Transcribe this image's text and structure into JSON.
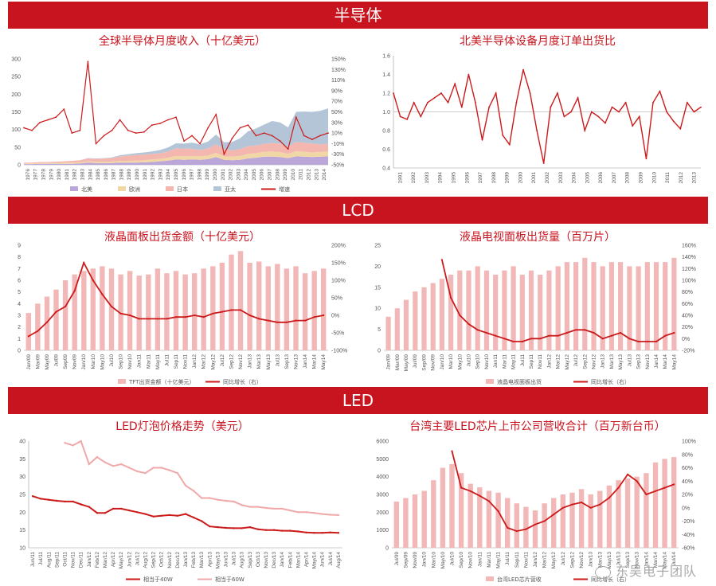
{
  "banners": {
    "semiconductor": "半导体",
    "lcd": "LCD",
    "led": "LED"
  },
  "watermark": "东吴电子团队",
  "colors": {
    "accent": "#c8141e",
    "bar": "#f2b8b8",
    "line": "#cc1a1a",
    "na": "#bba6d9",
    "eu": "#f2d7a6",
    "jp": "#f4b7b0",
    "ap": "#b4c5d8"
  },
  "chart_data": [
    {
      "id": "global-semi",
      "type": "area",
      "title": "全球半导体月度收入（十亿美元）",
      "ylim": [
        0,
        300
      ],
      "y_ticks": [
        "0",
        "50",
        "100",
        "150",
        "200",
        "250",
        "300"
      ],
      "y2lim": [
        -50,
        150
      ],
      "y2_ticks": [
        "-50%",
        "-30%",
        "-10%",
        "10%",
        "30%",
        "50%",
        "70%",
        "90%",
        "110%",
        "130%",
        "150%"
      ],
      "x_labels": [
        "1976",
        "1977",
        "1978",
        "1979",
        "1980",
        "1981",
        "1982",
        "1983",
        "1984",
        "1985",
        "1986",
        "1987",
        "1988",
        "1989",
        "1990",
        "1991",
        "1992",
        "1993",
        "1994",
        "1995",
        "1996",
        "1997",
        "1998",
        "1999",
        "2000",
        "2001",
        "2002",
        "2003",
        "2004",
        "2005",
        "2006",
        "2007",
        "2008",
        "2009",
        "2010",
        "2011",
        "2012",
        "2013",
        "2014"
      ],
      "legend": [
        "北美",
        "欧洲",
        "日本",
        "亚太",
        "增速"
      ],
      "series": [
        {
          "name": "北美",
          "values": [
            2,
            2,
            3,
            3,
            3,
            3,
            3,
            4,
            6,
            5,
            5,
            5,
            6,
            6,
            6,
            7,
            8,
            10,
            12,
            15,
            14,
            15,
            14,
            16,
            22,
            14,
            13,
            14,
            18,
            20,
            23,
            23,
            22,
            19,
            24,
            23,
            22,
            23,
            24
          ]
        },
        {
          "name": "欧洲",
          "values": [
            2,
            2,
            2,
            2,
            2,
            3,
            3,
            3,
            4,
            4,
            4,
            4,
            5,
            5,
            6,
            6,
            7,
            7,
            8,
            10,
            10,
            10,
            10,
            10,
            12,
            10,
            10,
            11,
            13,
            13,
            14,
            15,
            14,
            12,
            15,
            14,
            13,
            13,
            14
          ]
        },
        {
          "name": "日本",
          "values": [
            2,
            2,
            3,
            3,
            4,
            4,
            5,
            6,
            8,
            8,
            9,
            10,
            13,
            15,
            16,
            16,
            16,
            16,
            18,
            22,
            22,
            21,
            18,
            20,
            24,
            20,
            18,
            20,
            22,
            22,
            22,
            24,
            24,
            20,
            26,
            26,
            25,
            22,
            22
          ]
        },
        {
          "name": "亚太",
          "values": [
            0,
            0,
            0,
            0,
            0,
            0,
            0,
            0,
            1,
            1,
            1,
            2,
            3,
            4,
            5,
            6,
            7,
            9,
            11,
            14,
            14,
            17,
            16,
            20,
            28,
            20,
            24,
            30,
            42,
            48,
            55,
            62,
            60,
            55,
            85,
            88,
            90,
            95,
            100
          ]
        },
        {
          "name": "增速",
          "values": [
            20,
            15,
            30,
            35,
            40,
            55,
            10,
            15,
            145,
            -10,
            5,
            15,
            35,
            15,
            10,
            12,
            25,
            28,
            35,
            40,
            -5,
            5,
            -10,
            20,
            45,
            -30,
            0,
            20,
            25,
            5,
            10,
            5,
            -5,
            -20,
            40,
            5,
            -2,
            5,
            10
          ]
        }
      ]
    },
    {
      "id": "na-book-to-bill",
      "type": "line",
      "title": "北美半导体设备月度订单出货比",
      "ylim": [
        0.4,
        1.6
      ],
      "y_ticks": [
        "0.4",
        "0.6",
        "0.8",
        "1.0",
        "1.2",
        "1.4",
        "1.6"
      ],
      "x_labels": [
        "1991",
        "1992",
        "1993",
        "1994",
        "1995",
        "1996",
        "1997",
        "1998",
        "1999",
        "2000",
        "2001",
        "2002",
        "2003",
        "2004",
        "2005",
        "2006",
        "2007",
        "2008",
        "2009",
        "2010",
        "2011",
        "2012",
        "2013"
      ],
      "series": [
        {
          "name": "订单出货比",
          "values": [
            1.2,
            0.95,
            0.92,
            1.1,
            0.95,
            1.1,
            1.15,
            1.2,
            1.1,
            1.3,
            1.05,
            1.4,
            1.1,
            0.7,
            1.05,
            1.2,
            0.75,
            0.65,
            1.1,
            1.45,
            1.2,
            0.8,
            0.45,
            1.05,
            1.2,
            0.95,
            1.0,
            1.15,
            0.8,
            1.0,
            0.95,
            0.88,
            1.05,
            1.0,
            1.1,
            0.85,
            0.95,
            0.5,
            1.1,
            1.22,
            1.0,
            0.9,
            0.82,
            1.1,
            1.0,
            1.05
          ]
        }
      ]
    },
    {
      "id": "lcd-value",
      "type": "bar",
      "title": "液晶面板出货金额（十亿美元）",
      "ylim": [
        0,
        9
      ],
      "y_ticks": [
        "0",
        "1",
        "2",
        "3",
        "4",
        "5",
        "6",
        "7",
        "8",
        "9"
      ],
      "y2lim": [
        -100,
        200
      ],
      "y2_ticks": [
        "-100%",
        "-50%",
        "0%",
        "50%",
        "100%",
        "150%",
        "200%"
      ],
      "x_labels": [
        "Jan/09",
        "Mar09",
        "May09",
        "Jul09",
        "Sep09",
        "Nov09",
        "Jan/10",
        "Mar10",
        "May10",
        "Jul10",
        "Sep10",
        "Nov10",
        "Jan11",
        "Mar11",
        "May11",
        "Jul11",
        "Sep11",
        "Nov11",
        "Jan12",
        "Mar12",
        "May12",
        "Jul12",
        "Sep12",
        "Nov12",
        "Jan13",
        "Mar13",
        "May13",
        "Jul13",
        "Sep13",
        "Nov13",
        "Jan14",
        "Mar14",
        "May14"
      ],
      "legend": [
        "TFT出货金额（十亿美元）",
        "同比增长（右）"
      ],
      "series": [
        {
          "name": "TFT出货金额（十亿美元）",
          "values": [
            3.2,
            4.0,
            4.6,
            5.2,
            6.0,
            6.5,
            6.8,
            7.0,
            7.2,
            7.0,
            6.5,
            6.8,
            6.4,
            6.5,
            7.0,
            6.6,
            6.8,
            6.5,
            6.6,
            7.0,
            7.2,
            7.5,
            8.2,
            8.5,
            7.5,
            7.6,
            7.2,
            7.4,
            7.0,
            7.2,
            6.6,
            6.8,
            7.0
          ]
        },
        {
          "name": "同比增长（右）",
          "values": [
            -60,
            -45,
            -20,
            10,
            25,
            70,
            150,
            100,
            60,
            25,
            5,
            0,
            -10,
            -10,
            -10,
            -10,
            -5,
            -5,
            0,
            -5,
            5,
            10,
            15,
            15,
            0,
            -10,
            -15,
            -20,
            -20,
            -15,
            -15,
            -5,
            0
          ]
        }
      ]
    },
    {
      "id": "lcd-tv-units",
      "type": "bar",
      "title": "液晶电视面板出货量（百万片）",
      "ylim": [
        0,
        25
      ],
      "y_ticks": [
        "0",
        "5",
        "10",
        "15",
        "20",
        "25"
      ],
      "y2lim": [
        -20,
        160
      ],
      "y2_ticks": [
        "-20%",
        "0%",
        "20%",
        "40%",
        "60%",
        "80%",
        "100%",
        "120%",
        "140%",
        "160%"
      ],
      "x_labels": [
        "Jan/09",
        "Mar/09",
        "May/09",
        "Jul/09",
        "Sep/09",
        "Nov/09",
        "Jan/10",
        "Mar10",
        "May10",
        "Jul10",
        "Sep10",
        "Nov10",
        "Jan11",
        "Mar11",
        "May11",
        "Jul11",
        "Sep11",
        "Nov11",
        "Jan12",
        "Mar12",
        "May12",
        "Jul12",
        "Sep12",
        "Nov12",
        "Jan13",
        "Mar13",
        "May13",
        "Jul13",
        "Sep13",
        "Nov13",
        "Jan14",
        "Mar14",
        "May14"
      ],
      "legend": [
        "液晶电视面板出货",
        "同比增长（右）"
      ],
      "series": [
        {
          "name": "液晶电视面板出货",
          "values": [
            8,
            10,
            12,
            14,
            15,
            16,
            17,
            18,
            19,
            19,
            20,
            19,
            18,
            19,
            20,
            18,
            19,
            18,
            19,
            20,
            21,
            21,
            22,
            21,
            20,
            21,
            21,
            20,
            20,
            21,
            21,
            21,
            22
          ]
        },
        {
          "name": "同比增长（右）",
          "values": [
            null,
            null,
            null,
            null,
            null,
            null,
            135,
            70,
            40,
            25,
            15,
            10,
            5,
            0,
            -5,
            -5,
            0,
            0,
            5,
            5,
            10,
            15,
            15,
            10,
            0,
            5,
            10,
            0,
            -5,
            -5,
            -5,
            5,
            10
          ]
        }
      ]
    },
    {
      "id": "led-bulb-price",
      "type": "line",
      "title": "LED灯泡价格走势（美元）",
      "ylim": [
        10,
        40
      ],
      "y_ticks": [
        "10",
        "15",
        "20",
        "25",
        "30",
        "35",
        "40"
      ],
      "x_labels": [
        "Jun/11",
        "Jul/11",
        "Aug/11",
        "Sep/11",
        "Oct/11",
        "Nov/11",
        "Dec/11",
        "Jan/12",
        "Feb/12",
        "Mar/12",
        "Apr/12",
        "May/12",
        "Jun/12",
        "Jul/12",
        "Aug/12",
        "Sep/12",
        "Oct/12",
        "Nov/12",
        "Dec/12",
        "Jan/13",
        "Feb/13",
        "Mar/13",
        "Apr/13",
        "May/13",
        "Jun/13",
        "Jul/13",
        "Aug/13",
        "Sep/13",
        "Oct/13",
        "Nov/13",
        "Dec/13",
        "Jan/14",
        "Feb/14",
        "Mar/14",
        "Apr/14",
        "May/14",
        "Jun/14",
        "Jul/14",
        "Aug/14"
      ],
      "legend": [
        "相当于40W",
        "相当于60W"
      ],
      "series": [
        {
          "name": "相当于40W",
          "values": [
            24.5,
            23.8,
            23.5,
            23.2,
            23,
            23,
            22.2,
            21.5,
            19.8,
            19.8,
            21,
            21,
            20.5,
            20,
            19.5,
            18.8,
            19,
            19.2,
            19,
            19.5,
            18.5,
            17.5,
            16,
            15.8,
            15.6,
            15.5,
            15.5,
            15.8,
            15.2,
            15,
            15,
            14.8,
            14.8,
            14.6,
            14.3,
            14.2,
            14.2,
            14.3,
            14.2
          ]
        },
        {
          "name": "相当于60W",
          "values": [
            null,
            null,
            null,
            null,
            39.5,
            38.8,
            40,
            33.5,
            35.5,
            34,
            33,
            33.5,
            32.5,
            31.5,
            31,
            32.5,
            32.5,
            31.8,
            31,
            27.5,
            26,
            24,
            24,
            23.5,
            23.2,
            23,
            22,
            21.5,
            21.5,
            21.2,
            21,
            21,
            20.5,
            20,
            20,
            19.8,
            19.5,
            19.3,
            19.2
          ]
        }
      ]
    },
    {
      "id": "taiwan-led-revenue",
      "type": "bar",
      "title": "台湾主要LED芯片上市公司营收合计（百万新台币）",
      "ylim": [
        0,
        6000
      ],
      "y_ticks": [
        "0",
        "1000",
        "2000",
        "3000",
        "4000",
        "5000",
        "6000"
      ],
      "y2lim": [
        -60,
        100
      ],
      "y2_ticks": [
        "-60%",
        "-40%",
        "-20%",
        "0%",
        "20%",
        "40%",
        "60%",
        "80%",
        "100%"
      ],
      "x_labels": [
        "Jul/09",
        "Sep/09",
        "Nov/09",
        "Jan/10",
        "Mar/10",
        "May/10",
        "Jul/10",
        "Sep/10",
        "Nov/10",
        "Jan/11",
        "Mar/11",
        "May/11",
        "Jul/11",
        "Sep/11",
        "Nov/11",
        "Jan/12",
        "Mar/12",
        "May/12",
        "Jul/12",
        "Sep/12",
        "Nov/12",
        "Jan/13",
        "Mar/13",
        "May/13",
        "Jul/13",
        "Sep/13",
        "Nov/13",
        "Jan/14",
        "Mar/14",
        "May/14",
        "Jul/14"
      ],
      "legend": [
        "台湾LED芯片营收",
        "同比增长（右）"
      ],
      "series": [
        {
          "name": "台湾LED芯片营收",
          "values": [
            2600,
            2800,
            3000,
            3200,
            3800,
            4500,
            4700,
            4200,
            3600,
            3400,
            3200,
            3100,
            2800,
            2500,
            2300,
            2100,
            2500,
            2800,
            3000,
            3100,
            3300,
            3000,
            3200,
            3500,
            3800,
            3900,
            4000,
            4200,
            4800,
            5000,
            5100
          ]
        },
        {
          "name": "同比增长（右）",
          "values": [
            null,
            null,
            null,
            null,
            null,
            null,
            85,
            30,
            25,
            18,
            10,
            -5,
            -30,
            -35,
            -32,
            -25,
            -20,
            -10,
            0,
            5,
            8,
            0,
            5,
            15,
            30,
            50,
            40,
            20,
            25,
            30,
            35
          ]
        }
      ]
    }
  ]
}
